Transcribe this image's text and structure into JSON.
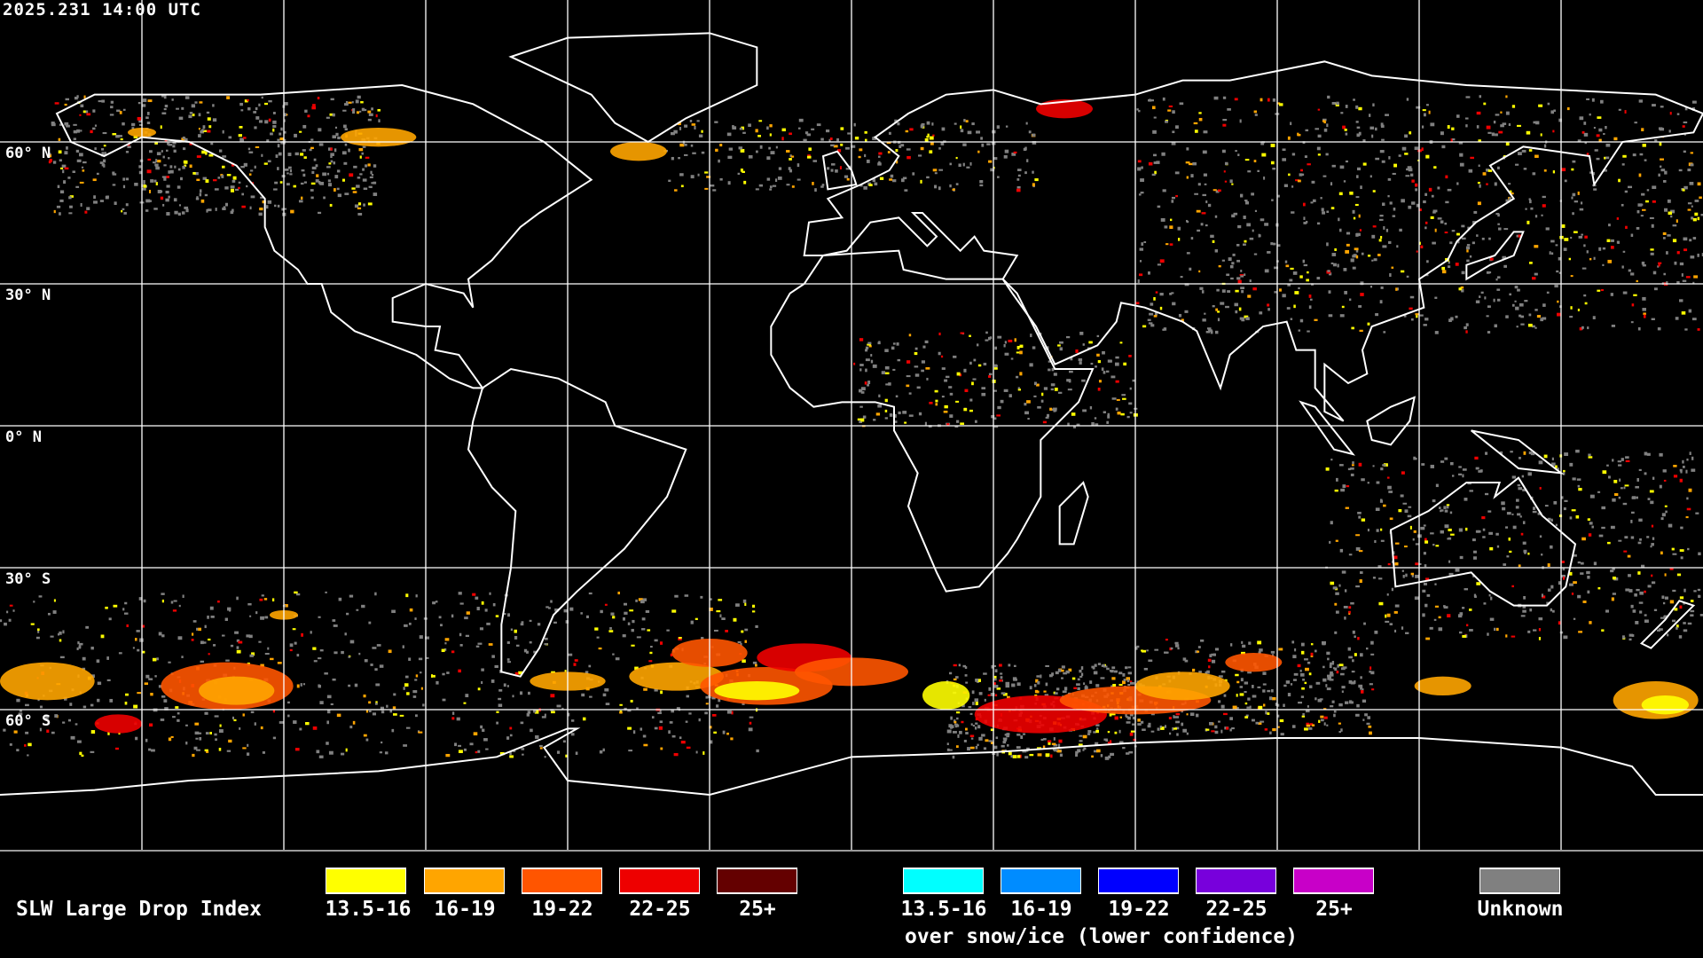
{
  "timestamp": "2025.231 14:00 UTC",
  "latitude_labels": [
    "60° N",
    "30° N",
    "0° N",
    "30° S",
    "60° S"
  ],
  "legend": {
    "title": "SLW Large Drop Index",
    "primary": [
      {
        "label": "13.5-16",
        "color": "#ffff00"
      },
      {
        "label": "16-19",
        "color": "#ffa500"
      },
      {
        "label": "19-22",
        "color": "#ff5500"
      },
      {
        "label": "22-25",
        "color": "#ee0000"
      },
      {
        "label": "25+",
        "color": "#640000"
      }
    ],
    "snow_ice": [
      {
        "label": "13.5-16",
        "color": "#00ffff"
      },
      {
        "label": "16-19",
        "color": "#008cff"
      },
      {
        "label": "19-22",
        "color": "#0000ff"
      },
      {
        "label": "22-25",
        "color": "#7800dc"
      },
      {
        "label": "25+",
        "color": "#c800c8"
      }
    ],
    "snow_ice_caption": "over snow/ice (lower confidence)",
    "unknown": {
      "label": "Unknown",
      "color": "#808080"
    }
  },
  "map": {
    "projection": "equirectangular",
    "graticule_spacing_deg": 30,
    "background": "#000000",
    "coastline_color": "#ffffff"
  }
}
